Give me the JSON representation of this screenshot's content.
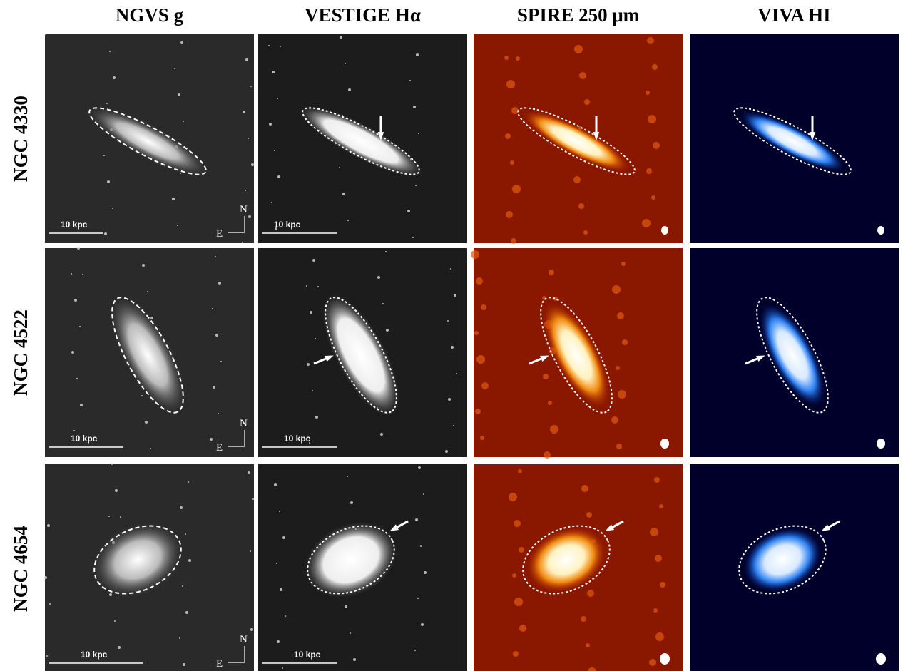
{
  "columns": [
    "NGVS g",
    "VESTIGE Hα",
    "SPIRE 250 μm",
    "VIVA HI"
  ],
  "rows": [
    {
      "label": "NGC 4330",
      "scale_labels": [
        "10 kpc",
        "10 kpc"
      ],
      "compass": [
        "N",
        "E"
      ]
    },
    {
      "label": "NGC 4522",
      "scale_labels": [
        "10 kpc",
        "10 kpc"
      ],
      "compass": [
        "N",
        "E"
      ]
    },
    {
      "label": "NGC 4654",
      "scale_labels": [
        "10 kpc",
        "10 kpc"
      ],
      "compass": [
        "N",
        "E"
      ]
    }
  ]
}
